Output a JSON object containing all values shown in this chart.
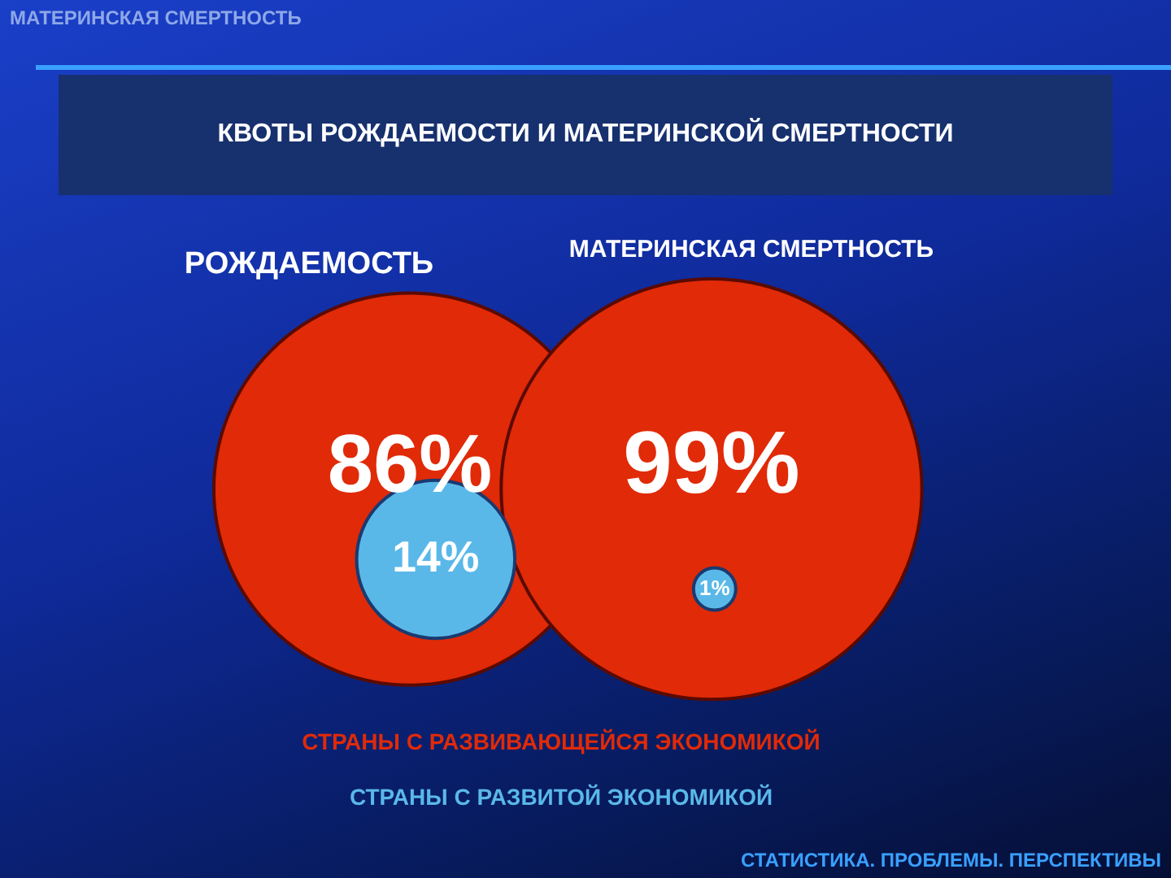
{
  "chart_data": {
    "type": "other",
    "title": "КВОТЫ РОЖДАЕМОСТИ И МАТЕРИНСКОЙ СМЕРТНОСТИ",
    "categories": [
      "РОЖДАЕМОСТЬ",
      "МАТЕРИНСКАЯ СМЕРТНОСТЬ"
    ],
    "series": [
      {
        "name": "СТРАНЫ С РАЗВИВАЮЩЕЙСЯ ЭКОНОМИКОЙ",
        "color": "#e02a08",
        "values": [
          86,
          99
        ],
        "value_labels": [
          "86%",
          "99%"
        ]
      },
      {
        "name": "СТРАНЫ С РАЗВИТОЙ ЭКОНОМИКОЙ",
        "color": "#5ab8e8",
        "values": [
          14,
          1
        ],
        "value_labels": [
          "14%",
          "1%"
        ]
      }
    ],
    "legend": "bottom",
    "annotations": [
      "МАТЕРИНСКАЯ СМЕРТНОСТЬ",
      "СТАТИСТИКА. ПРОБЛЕМЫ. ПЕРСПЕКТИВЫ"
    ]
  }
}
